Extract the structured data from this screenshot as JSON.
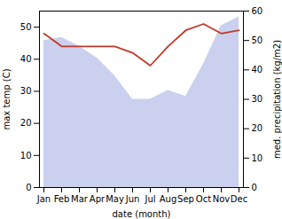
{
  "chart_data": {
    "type": "line",
    "xlabel": "date (month)",
    "ylabel": "max temp (C)",
    "y2label": "med. precipitation (kg/m2)",
    "categories": [
      "Jan",
      "Feb",
      "Mar",
      "Apr",
      "May",
      "Jun",
      "Jul",
      "Aug",
      "Sep",
      "Oct",
      "Nov",
      "Dec"
    ],
    "series": [
      {
        "type": "area",
        "axis": "y2",
        "color": "#b8c0e8",
        "values": [
          50,
          51,
          48,
          44,
          38,
          30,
          30,
          33,
          31,
          42,
          55,
          58
        ]
      },
      {
        "type": "line",
        "color": "#c0392b",
        "values": [
          48,
          44,
          44,
          44,
          44,
          42,
          38,
          44,
          49,
          51,
          48,
          49
        ]
      }
    ],
    "ylim": [
      0,
      55
    ],
    "yticks": [
      0,
      10,
      20,
      30,
      40,
      50
    ],
    "y2lim": [
      0,
      60
    ],
    "y2ticks": [
      0,
      10,
      20,
      30,
      40,
      50,
      60
    ]
  }
}
